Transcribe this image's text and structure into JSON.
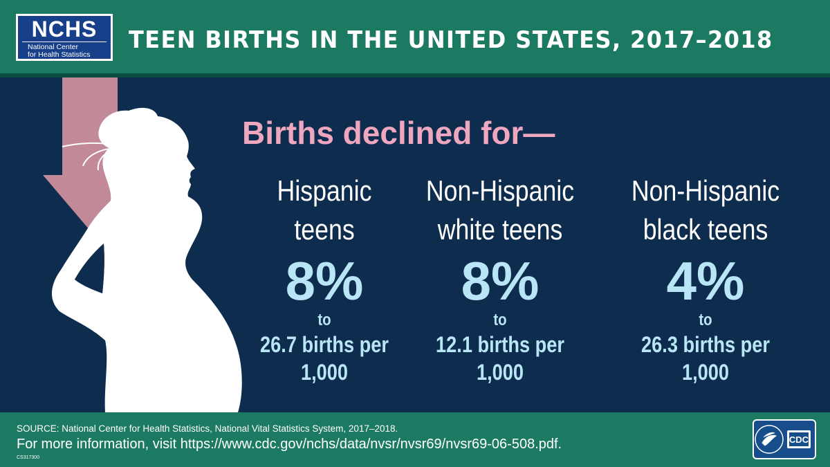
{
  "header": {
    "logo_title": "NCHS",
    "logo_line1": "National Center",
    "logo_line2": "for Health Statistics",
    "title": "TEEN BIRTHS IN THE UNITED STATES, 2017–2018"
  },
  "headline": "Births declined for—",
  "groups": [
    {
      "label_line1": "Hispanic",
      "label_line2": "teens",
      "percent": "8%",
      "to": "to",
      "rate_line1": "26.7 births per",
      "rate_line2": "1,000"
    },
    {
      "label_line1": "Non-Hispanic",
      "label_line2": "white teens",
      "percent": "8%",
      "to": "to",
      "rate_line1": "12.1 births per",
      "rate_line2": "1,000"
    },
    {
      "label_line1": "Non-Hispanic",
      "label_line2": "black teens",
      "percent": "4%",
      "to": "to",
      "rate_line1": "26.3 births per",
      "rate_line2": "1,000"
    }
  ],
  "footer": {
    "source": "SOURCE: National Center for Health Statistics, National Vital Statistics System, 2017–2018.",
    "more_info": "For more information, visit https://www.cdc.gov/nchs/data/nvsr/nvsr69/nvsr69-06-508.pdf.",
    "code": "CS317300",
    "cdc_logo_text": "CDC"
  },
  "icons": {
    "arrow": "down-arrow-icon",
    "silhouette": "pregnant-woman-silhouette",
    "hhs": "hhs-eagle-logo",
    "cdc": "cdc-logo"
  },
  "colors": {
    "header_green": "#1d7a62",
    "background_navy": "#0e2d4e",
    "headline_pink": "#eea7bf",
    "stat_blue": "#b9e6f7",
    "arrow_mauve": "#c28a98",
    "logo_blue": "#173f8a"
  }
}
